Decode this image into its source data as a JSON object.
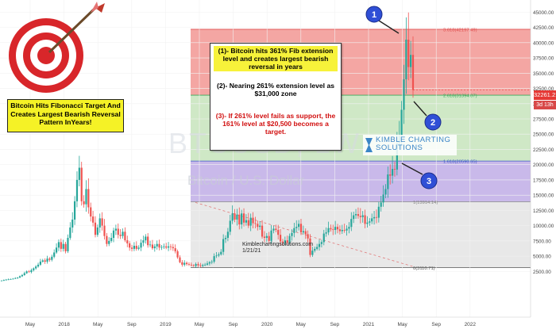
{
  "chart_data": {
    "type": "candlestick",
    "symbol_watermark": "BTCUSD, 1W",
    "subtitle_watermark": "Bitcoin / U.S. Dollar",
    "x_ticks": [
      "May",
      "2018",
      "May",
      "Sep",
      "2019",
      "May",
      "Sep",
      "2020",
      "May",
      "Sep",
      "2021",
      "May",
      "Sep",
      "2022"
    ],
    "y_ticks": [
      "2500.00",
      "5000.00",
      "7500.00",
      "10000.00",
      "12500.00",
      "15000.00",
      "17500.00",
      "20000.00",
      "22500.00",
      "25000.00",
      "27500.00",
      "30000.00",
      "32500.00",
      "35000.00",
      "37500.00",
      "40000.00",
      "42500.00",
      "45000.00"
    ],
    "y_range": [
      -5000,
      47000
    ],
    "current_price": "32261.21",
    "time_to_close": "3d 13h",
    "fib_levels": [
      {
        "label": "3.618(42197.49)",
        "value": 42197.49,
        "color": "#e05050"
      },
      {
        "label": "2.618(31394.07)",
        "value": 31394.07,
        "color": "#3aaa5a"
      },
      {
        "label": "1.618(20590.65)",
        "value": 20590.65,
        "color": "#3b5bc4"
      },
      {
        "label": "1(13914.14)",
        "value": 13914.14,
        "color": "#888888"
      },
      {
        "label": "0(3110.71)",
        "value": 3110.71,
        "color": "#555555"
      }
    ],
    "weekly_closes": [
      1000,
      1100,
      1150,
      1200,
      1250,
      1300,
      1400,
      1500,
      1700,
      1900,
      2200,
      2500,
      2400,
      2700,
      3000,
      3300,
      3600,
      4100,
      4300,
      4100,
      4600,
      4400,
      4900,
      5600,
      6400,
      7300,
      6200,
      7000,
      5800,
      8000,
      9700,
      11000,
      14000,
      17500,
      19500,
      14000,
      13500,
      16000,
      13000,
      11500,
      10500,
      8500,
      9700,
      11200,
      10000,
      8300,
      7000,
      7500,
      8000,
      9200,
      9500,
      8500,
      8300,
      9000,
      7600,
      7100,
      6400,
      6200,
      6700,
      6200,
      6400,
      7200,
      7600,
      8200,
      6800,
      6900,
      6300,
      6600,
      7000,
      6400,
      6500,
      6600,
      6400,
      6600,
      6500,
      6300,
      5800,
      4800,
      4000,
      3600,
      3900,
      3700,
      3600,
      3500,
      3400,
      3700,
      3500,
      3400,
      3550,
      3600,
      3800,
      4000,
      4100,
      5000,
      5100,
      5300,
      5700,
      7800,
      8000,
      9000,
      10800,
      12000,
      11000,
      11800,
      10200,
      12000,
      10500,
      10900,
      10000,
      11300,
      10400,
      10300,
      9800,
      10000,
      8200,
      8000,
      8300,
      7500,
      9200,
      9500,
      9300,
      8500,
      7400,
      7200,
      7600,
      7200,
      8300,
      8800,
      9600,
      9800,
      10300,
      8900,
      9100,
      8600,
      7900,
      5200,
      5900,
      6200,
      6500,
      7000,
      7300,
      8700,
      8900,
      9600,
      9400,
      9300,
      9800,
      9400,
      9100,
      9300,
      9200,
      9500,
      9800,
      11100,
      11700,
      11900,
      11600,
      11400,
      11700,
      10300,
      10500,
      10700,
      11200,
      11400,
      11300,
      13100,
      13800,
      15100,
      16000,
      18400,
      18200,
      19300,
      19200,
      23500,
      24700,
      29000,
      34000,
      40500,
      36000,
      38000,
      32261
    ]
  },
  "fib_labels": [
    "3.618(42197.49)",
    "2.618(31394.07)",
    "1.618(20590.65)",
    "1(13914.14)",
    "0(3110.71)"
  ],
  "annotations": {
    "note1": "(1)- Bitcoin hits 361% Fib extension level and creates largest bearish reversal in years",
    "note2": "(2)- Nearing 261% extension level as $31,000 zone",
    "note3": "(3)- If 261% level fails as support, the 161% level at $20,500 becomes a target.",
    "caption": "Bitcoin Hits Fibonacci Target And Creates Largest Bearish Reversal Pattern InYears!",
    "markers": [
      "1",
      "2",
      "3"
    ],
    "credit_line1": "Kimblechartingsolutions.com",
    "credit_line2": "1/21/21",
    "logo_line1": "KIMBLE CHARTING",
    "logo_line2": "SOLUTIONS"
  },
  "colors": {
    "up": "#26a69a",
    "down": "#ef5350",
    "fib_red_zone": "#f4a6a3",
    "fib_green_zone": "#cfe8c6",
    "fib_purple_zone": "#c9b9ea",
    "fib_grey_zone": "#e8e8e8",
    "marker": "#2f4fd6"
  }
}
